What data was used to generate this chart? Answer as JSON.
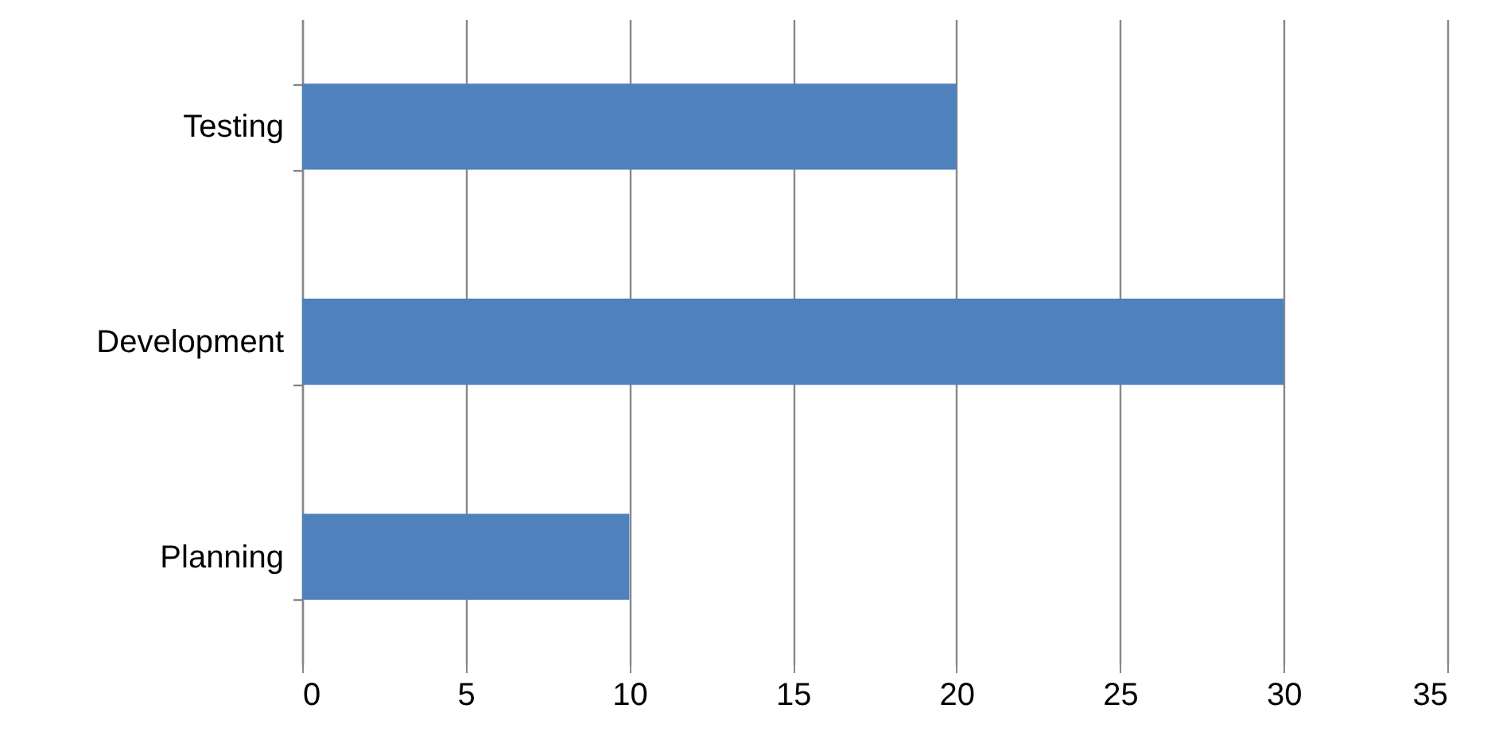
{
  "chart_data": {
    "type": "bar",
    "orientation": "horizontal",
    "categories": [
      "Testing",
      "Development",
      "Planning"
    ],
    "values": [
      20,
      30,
      10
    ],
    "color": "#4f81bd",
    "xlim": [
      0,
      35
    ],
    "xticks": [
      0,
      5,
      10,
      15,
      20,
      25,
      30,
      35
    ],
    "grid": "x"
  }
}
